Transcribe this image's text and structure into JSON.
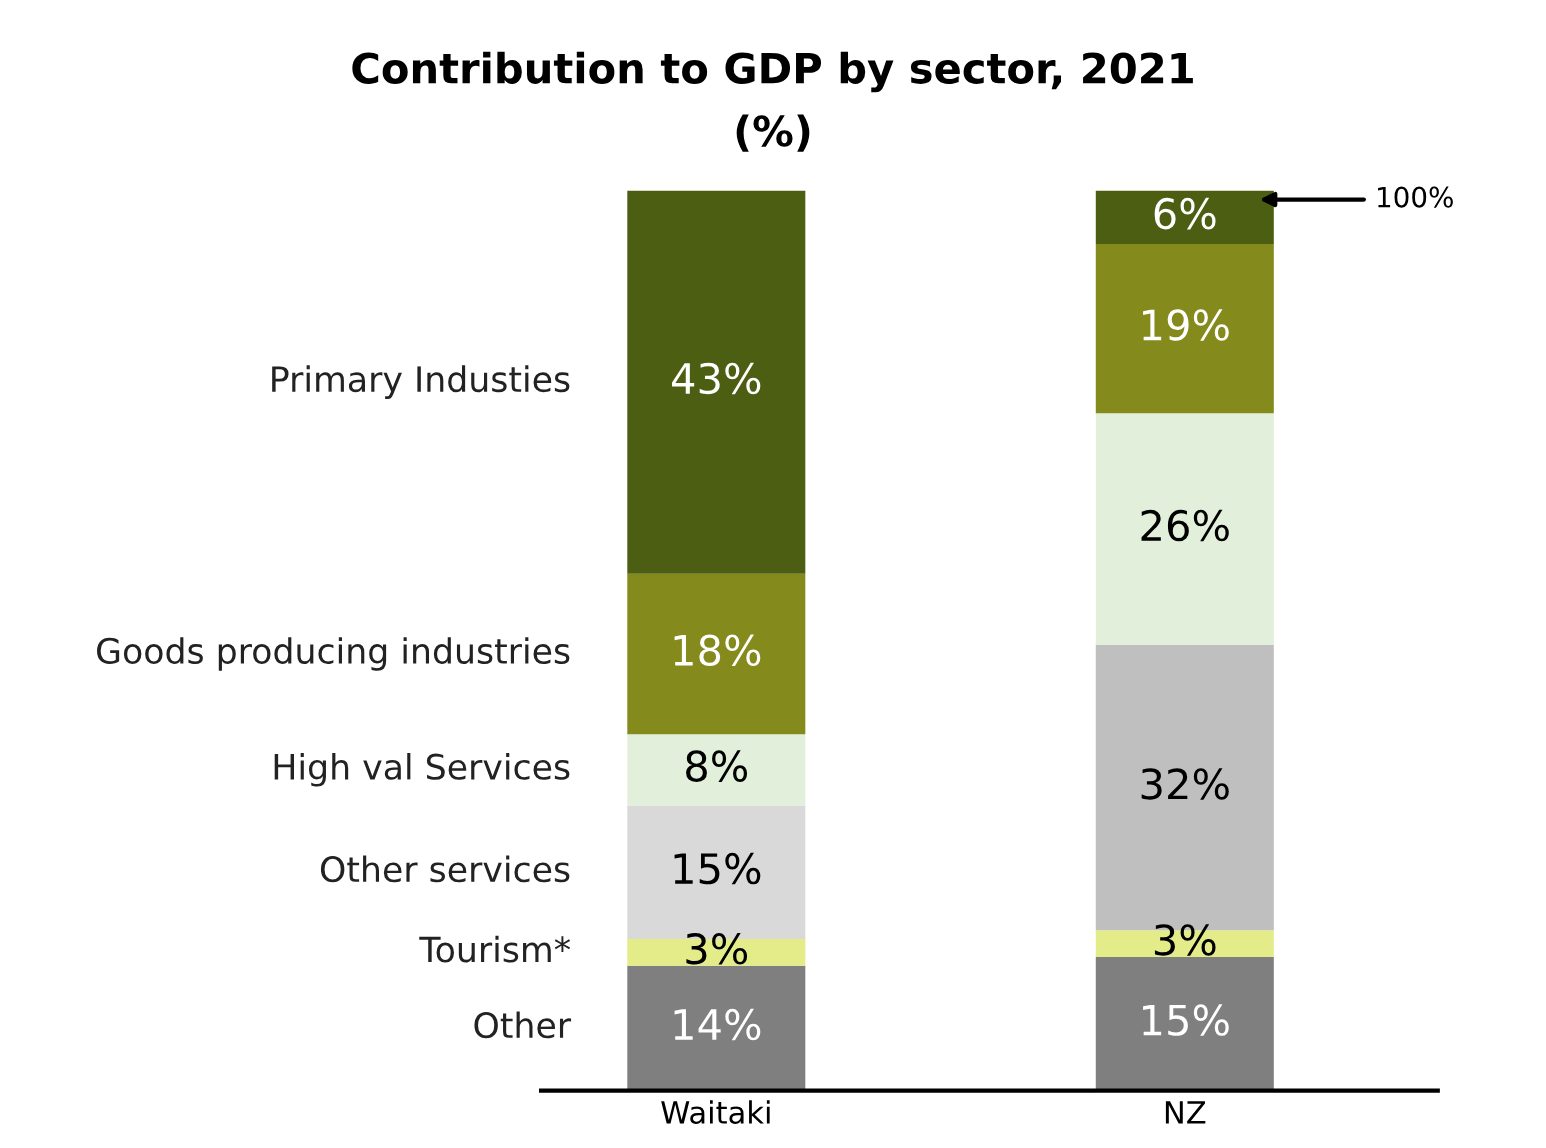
{
  "chart_data": {
    "type": "bar",
    "title": "Contribution to GDP by sector, 2021\n(%)",
    "categories": [
      "Waitaki",
      "NZ"
    ],
    "stacked": true,
    "series": [
      {
        "name": "Other",
        "color": "#7f7f7f",
        "values": [
          14,
          15
        ],
        "value_labels": [
          "14%",
          "15%"
        ]
      },
      {
        "name": "Tourism*",
        "color": "#e4ec8a",
        "values": [
          3,
          3
        ],
        "value_labels": [
          "3%",
          "3%"
        ]
      },
      {
        "name": "Other services",
        "colors": [
          "#d9d9d9",
          "#bfbfbf"
        ],
        "values": [
          15,
          32
        ],
        "value_labels": [
          "15%",
          "32%"
        ]
      },
      {
        "name": "High val Services",
        "color": "#e2efda",
        "values": [
          8,
          26
        ],
        "value_labels": [
          "8%",
          "26%"
        ]
      },
      {
        "name": "Goods producing industries",
        "color": "#858a1c",
        "values": [
          18,
          19
        ],
        "value_labels": [
          "18%",
          "19%"
        ]
      },
      {
        "name": "Primary Industies",
        "color": "#4b5e12",
        "values": [
          43,
          6
        ],
        "value_labels": [
          "43%",
          "6%"
        ]
      }
    ],
    "annotations": [
      "100%"
    ]
  }
}
